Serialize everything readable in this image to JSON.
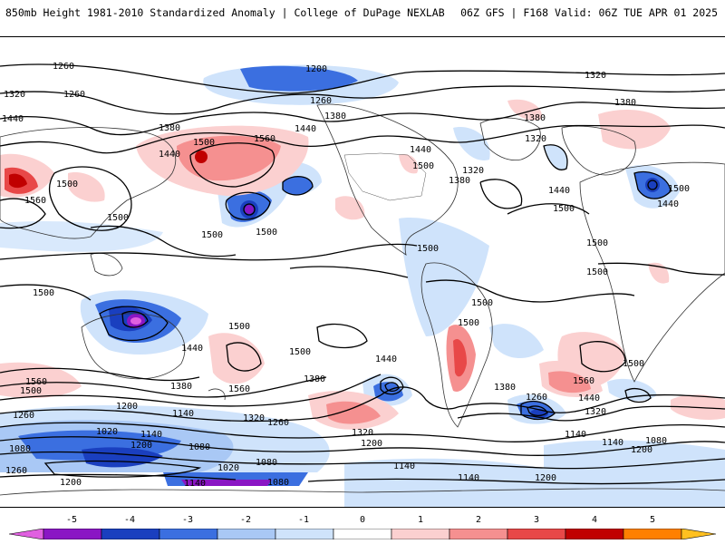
{
  "header": {
    "title_left": "850mb Height 1981-2010 Standardized Anomaly | College of DuPage NEXLAB",
    "title_right": "06Z GFS | F168 Valid: 06Z TUE APR 01 2025"
  },
  "colorbar": {
    "labels": [
      "-5",
      "-4",
      "-3",
      "-2",
      "-1",
      "0",
      "1",
      "2",
      "3",
      "4",
      "5"
    ],
    "colors": [
      "#e060e0",
      "#8a16c4",
      "#1a3fbf",
      "#3b6fe0",
      "#a9c8f5",
      "#cfe3fb",
      "#ffffff",
      "#fbd0d0",
      "#f59090",
      "#e84848",
      "#c00000",
      "#ff8000",
      "#ffc020"
    ]
  },
  "contour_labels": [
    {
      "text": "1260"
    },
    {
      "text": "1200"
    },
    {
      "text": "1320"
    },
    {
      "text": "1320"
    },
    {
      "text": "1260"
    },
    {
      "text": "1260"
    },
    {
      "text": "1440"
    },
    {
      "text": "1380"
    },
    {
      "text": "1380"
    },
    {
      "text": "1380"
    },
    {
      "text": "1500"
    },
    {
      "text": "1560"
    },
    {
      "text": "1440"
    },
    {
      "text": "1440"
    },
    {
      "text": "1380"
    },
    {
      "text": "1320"
    },
    {
      "text": "1440"
    },
    {
      "text": "1500"
    },
    {
      "text": "1320"
    },
    {
      "text": "1380"
    },
    {
      "text": "1440"
    },
    {
      "text": "1500"
    },
    {
      "text": "1440"
    },
    {
      "text": "1500"
    },
    {
      "text": "1560"
    },
    {
      "text": "1500"
    },
    {
      "text": "1500"
    },
    {
      "text": "1500"
    },
    {
      "text": "1500"
    },
    {
      "text": "1500"
    },
    {
      "text": "1500"
    },
    {
      "text": "1500"
    },
    {
      "text": "1500"
    },
    {
      "text": "1500"
    },
    {
      "text": "1440"
    },
    {
      "text": "1500"
    },
    {
      "text": "1380"
    },
    {
      "text": "1560"
    },
    {
      "text": "1500"
    },
    {
      "text": "1560"
    },
    {
      "text": "1380"
    },
    {
      "text": "1440"
    },
    {
      "text": "1500"
    },
    {
      "text": "1500"
    },
    {
      "text": "1380"
    },
    {
      "text": "1260"
    },
    {
      "text": "1560"
    },
    {
      "text": "1440"
    },
    {
      "text": "1500"
    },
    {
      "text": "1200"
    },
    {
      "text": "1260"
    },
    {
      "text": "1320"
    },
    {
      "text": "1140"
    },
    {
      "text": "1260"
    },
    {
      "text": "1320"
    },
    {
      "text": "1140"
    },
    {
      "text": "1200"
    },
    {
      "text": "1080"
    },
    {
      "text": "1320"
    },
    {
      "text": "1020"
    },
    {
      "text": "1140"
    },
    {
      "text": "1080"
    },
    {
      "text": "1200"
    },
    {
      "text": "1080"
    },
    {
      "text": "1260"
    },
    {
      "text": "1020"
    },
    {
      "text": "1200"
    },
    {
      "text": "1140"
    },
    {
      "text": "1080"
    },
    {
      "text": "1140"
    },
    {
      "text": "1140"
    },
    {
      "text": "1200"
    },
    {
      "text": "1080"
    },
    {
      "text": "1140"
    },
    {
      "text": "1200"
    }
  ]
}
